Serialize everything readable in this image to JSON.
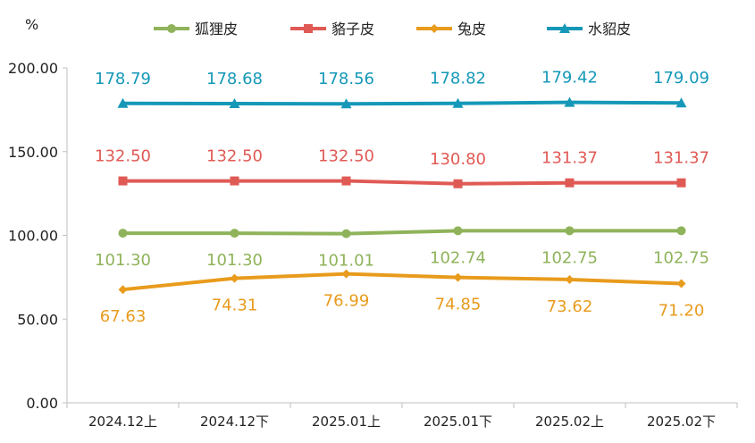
{
  "chart_data": {
    "type": "line",
    "unit_label": "%",
    "categories": [
      "2024.12上",
      "2024.12下",
      "2025.01上",
      "2025.01下",
      "2025.02上",
      "2025.02下"
    ],
    "ylim": [
      0,
      200
    ],
    "yticks": [
      "0.00",
      "50.00",
      "100.00",
      "150.00",
      "200.00"
    ],
    "legend_position": "top",
    "grid": false,
    "series": [
      {
        "name": "狐狸皮",
        "color": "#8fb35a",
        "marker": "circle",
        "values": [
          101.3,
          101.3,
          101.01,
          102.74,
          102.75,
          102.75
        ],
        "labels": [
          "101.30",
          "101.30",
          "101.01",
          "102.74",
          "102.75",
          "102.75"
        ],
        "label_position": "below"
      },
      {
        "name": "貉子皮",
        "color": "#e05a55",
        "marker": "square",
        "values": [
          132.5,
          132.5,
          132.5,
          130.8,
          131.37,
          131.37
        ],
        "labels": [
          "132.50",
          "132.50",
          "132.50",
          "130.80",
          "131.37",
          "131.37"
        ],
        "label_position": "above"
      },
      {
        "name": "兔皮",
        "color": "#e89b1c",
        "marker": "diamond",
        "values": [
          67.63,
          74.31,
          76.99,
          74.85,
          73.62,
          71.2
        ],
        "labels": [
          "67.63",
          "74.31",
          "76.99",
          "74.85",
          "73.62",
          "71.20"
        ],
        "label_position": "below"
      },
      {
        "name": "水貂皮",
        "color": "#1598b8",
        "marker": "triangle",
        "values": [
          178.79,
          178.68,
          178.56,
          178.82,
          179.42,
          179.09
        ],
        "labels": [
          "178.79",
          "178.68",
          "178.56",
          "178.82",
          "179.42",
          "179.09"
        ],
        "label_position": "above"
      }
    ]
  }
}
